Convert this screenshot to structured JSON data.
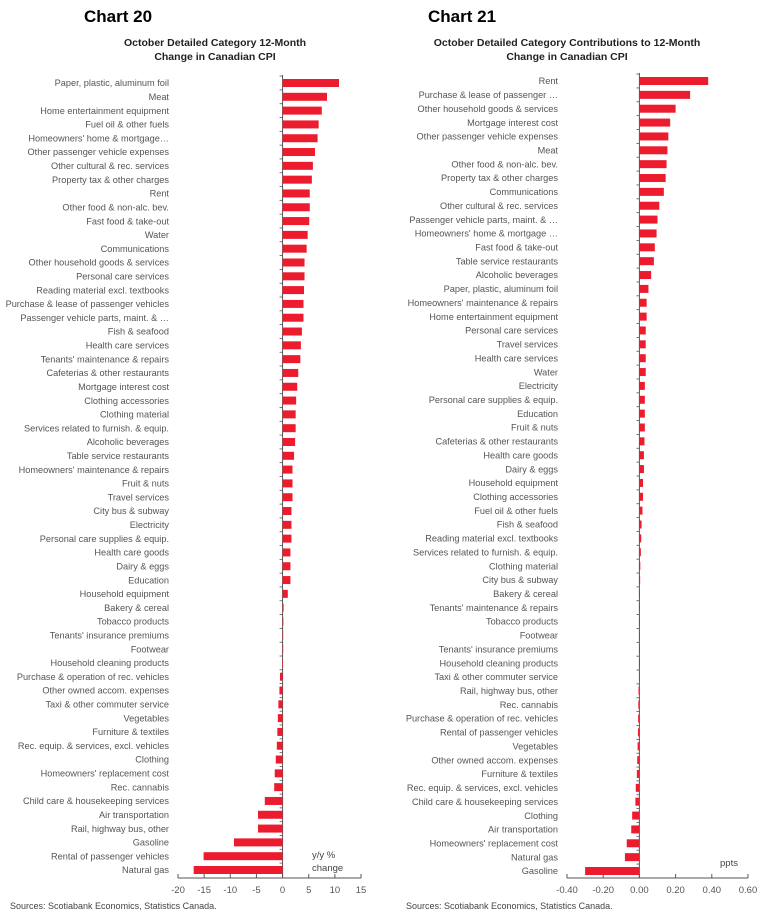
{
  "colors": {
    "bar": "#EC1C2E",
    "axis": "#555555"
  },
  "chart_data": [
    {
      "type": "bar",
      "orientation": "horizontal",
      "title": "Chart 20",
      "subtitle": [
        "October Detailed Category 12-Month",
        "Change in Canadian CPI"
      ],
      "unit_label": [
        "y/y %",
        "change"
      ],
      "source": "Sources: Scotiabank Economics, Statistics Canada.",
      "xlim": [
        -20,
        15
      ],
      "xticks": [
        -20,
        -15,
        -10,
        -5,
        0,
        5,
        10,
        15
      ],
      "grid": false,
      "categories": [
        "Paper, plastic, aluminum foil",
        "Meat",
        "Home entertainment equipment",
        "Fuel oil & other fuels",
        "Homeowners' home & mortgage…",
        "Other passenger vehicle expenses",
        "Other cultural & rec. services",
        "Property tax & other charges",
        "Rent",
        "Other food & non-alc. bev.",
        "Fast food & take-out",
        "Water",
        "Communications",
        "Other household goods & services",
        "Personal care services",
        "Reading material excl. textbooks",
        "Purchase & lease of passenger vehicles",
        "Passenger vehicle parts, maint. & …",
        "Fish & seafood",
        "Health care services",
        "Tenants' maintenance & repairs",
        "Cafeterias & other restaurants",
        "Mortgage interest cost",
        "Clothing accessories",
        "Clothing material",
        "Services related to furnish. & equip.",
        "Alcoholic beverages",
        "Table service restaurants",
        "Homeowners' maintenance & repairs",
        "Fruit & nuts",
        "Travel services",
        "City bus & subway",
        "Electricity",
        "Personal care supplies & equip.",
        "Health care goods",
        "Dairy & eggs",
        "Education",
        "Household equipment",
        "Bakery & cereal",
        "Tobacco products",
        "Tenants' insurance premiums",
        "Footwear",
        "Household cleaning products",
        "Purchase & operation of rec. vehicles",
        "Other owned accom. expenses",
        "Taxi & other commuter service",
        "Vegetables",
        "Furniture & textiles",
        "Rec. equip. & services, excl. vehicles",
        "Clothing",
        "Homeowners' replacement cost",
        "Rec. cannabis",
        "Child care & housekeeping services",
        "Air transportation",
        "Rail, highway bus, other",
        "Gasoline",
        "Rental of passenger vehicles",
        "Natural gas"
      ],
      "values": [
        10.8,
        8.5,
        7.5,
        6.9,
        6.7,
        6.2,
        5.8,
        5.6,
        5.2,
        5.2,
        5.1,
        4.8,
        4.6,
        4.2,
        4.2,
        4.1,
        4.0,
        4.0,
        3.7,
        3.5,
        3.4,
        3.0,
        2.8,
        2.6,
        2.5,
        2.5,
        2.4,
        2.2,
        1.9,
        1.9,
        1.9,
        1.7,
        1.7,
        1.7,
        1.5,
        1.5,
        1.5,
        1.0,
        0.2,
        0.15,
        0.1,
        0.05,
        -0.05,
        -0.5,
        -0.6,
        -0.8,
        -0.9,
        -1.0,
        -1.1,
        -1.3,
        -1.5,
        -1.6,
        -3.4,
        -4.7,
        -4.7,
        -9.3,
        -15.1,
        -17.0
      ]
    },
    {
      "type": "bar",
      "orientation": "horizontal",
      "title": "Chart 21",
      "subtitle": [
        "October Detailed Category Contributions to 12-Month",
        "Change in Canadian CPI"
      ],
      "unit_label": [
        "ppts"
      ],
      "source": "Sources: Scotiabank Economics, Statistics Canada.",
      "xlim": [
        -0.4,
        0.6
      ],
      "xticks": [
        "-0.40",
        "-0.20",
        "0.00",
        "0.20",
        "0.40",
        "0.60"
      ],
      "grid": false,
      "categories": [
        "Rent",
        "Purchase & lease of passenger …",
        "Other household goods & services",
        "Mortgage interest cost",
        "Other passenger vehicle expenses",
        "Meat",
        "Other food & non-alc. bev.",
        "Property tax & other charges",
        "Communications",
        "Other cultural & rec. services",
        "Passenger vehicle parts, maint. & …",
        "Homeowners' home & mortgage …",
        "Fast food & take-out",
        "Table service restaurants",
        "Alcoholic beverages",
        "Paper, plastic, aluminum foil",
        "Homeowners' maintenance & repairs",
        "Home entertainment equipment",
        "Personal care services",
        "Travel services",
        "Health care services",
        "Water",
        "Electricity",
        "Personal care supplies & equip.",
        "Education",
        "Fruit & nuts",
        "Cafeterias & other restaurants",
        "Health care goods",
        "Dairy & eggs",
        "Household equipment",
        "Clothing accessories",
        "Fuel oil & other fuels",
        "Fish & seafood",
        "Reading material excl. textbooks",
        "Services related to furnish. & equip.",
        "Clothing material",
        "City bus & subway",
        "Bakery & cereal",
        "Tenants' maintenance & repairs",
        "Tobacco products",
        "Footwear",
        "Tenants' insurance premiums",
        "Household cleaning products",
        "Taxi & other commuter service",
        "Rail, highway bus, other",
        "Rec. cannabis",
        "Purchase & operation of rec. vehicles",
        "Rental of passenger vehicles",
        "Vegetables",
        "Other owned accom. expenses",
        "Furniture & textiles",
        "Rec. equip. & services, excl. vehicles",
        "Child care & housekeeping services",
        "Clothing",
        "Air transportation",
        "Homeowners' replacement cost",
        "Natural gas",
        "Gasoline"
      ],
      "values": [
        0.38,
        0.28,
        0.2,
        0.17,
        0.16,
        0.155,
        0.15,
        0.145,
        0.135,
        0.11,
        0.1,
        0.095,
        0.085,
        0.08,
        0.065,
        0.05,
        0.04,
        0.04,
        0.035,
        0.035,
        0.035,
        0.035,
        0.03,
        0.03,
        0.03,
        0.03,
        0.028,
        0.025,
        0.025,
        0.02,
        0.02,
        0.017,
        0.012,
        0.01,
        0.008,
        0.005,
        0.004,
        0.002,
        0.001,
        0.001,
        0,
        0,
        0,
        -0.001,
        -0.005,
        -0.006,
        -0.007,
        -0.008,
        -0.01,
        -0.012,
        -0.014,
        -0.02,
        -0.022,
        -0.04,
        -0.045,
        -0.07,
        -0.08,
        -0.3
      ]
    }
  ]
}
